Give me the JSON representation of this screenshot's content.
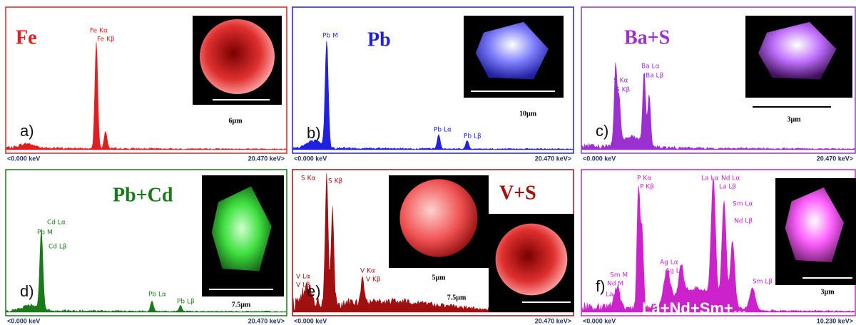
{
  "panels": [
    {
      "letter": "a)",
      "element": "Fe",
      "peak_labels": [
        "Fe Kα",
        "Fe Kβ"
      ],
      "scale_bars": [
        "6µm"
      ],
      "axis_start": "<0.000 keV",
      "axis_end": "20.470 keV>"
    },
    {
      "letter": "b)",
      "element": "Pb",
      "peak_labels": [
        "Pb M",
        "Pb Lα",
        "Pb Lβ"
      ],
      "scale_bars": [
        "10µm"
      ],
      "axis_start": "<0.000 keV",
      "axis_end": "20.470 keV>"
    },
    {
      "letter": "c)",
      "element": "Ba+S",
      "peak_labels": [
        "S Kα",
        "S Kβ",
        "Ba Lα",
        "Ba Lβ"
      ],
      "scale_bars": [
        "3µm"
      ],
      "axis_start": "<0.000 keV",
      "axis_end": "20.470 keV>"
    },
    {
      "letter": "d)",
      "element": "Pb+Cd",
      "peak_labels": [
        "Cd Lα",
        "Pb M",
        "Cd Lβ",
        "Pb Lα",
        "Pb Lβ"
      ],
      "scale_bars": [
        "7.5µm"
      ],
      "axis_start": "<0.000 keV",
      "axis_end": "20.470 keV>"
    },
    {
      "letter": "e)",
      "element": "V+S",
      "peak_labels": [
        "S Kα",
        "S Kβ",
        "V Lα",
        "V Lβ",
        "V Kα",
        "V Kβ"
      ],
      "scale_bars": [
        "5µm",
        "7.5µm"
      ],
      "axis_start": "<0.000 keV",
      "axis_end": "20.470 keV>"
    },
    {
      "letter": "f)",
      "element": "La+Nd+Sm+...",
      "peak_labels": [
        "P Kα",
        "P Kβ",
        "La Lα",
        "Nd Lα",
        "La Lβ",
        "Sm Lα",
        "Nd Lβ",
        "Ag Lα",
        "Ag Lβ",
        "Sm M",
        "Nd M",
        "La M",
        "Sm Lβ"
      ],
      "scale_bars": [
        "3µm"
      ],
      "axis_start": "<0.000 keV",
      "axis_end": "10.230 keV>"
    }
  ]
}
